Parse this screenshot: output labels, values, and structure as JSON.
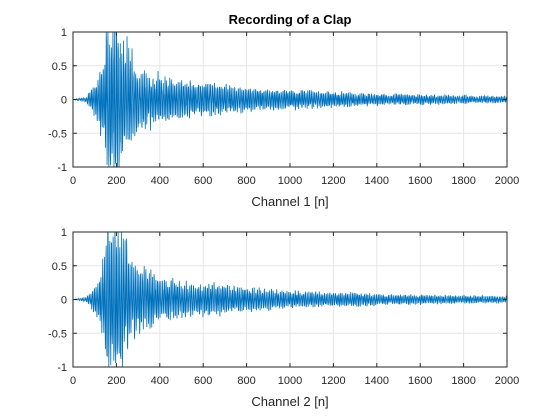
{
  "chart_data": [
    {
      "type": "line",
      "title": "Recording of a Clap",
      "xlabel": "Channel 1 [n]",
      "ylabel": "",
      "xlim": [
        0,
        2000
      ],
      "ylim": [
        -1,
        1
      ],
      "xticks": [
        0,
        200,
        400,
        600,
        800,
        1000,
        1200,
        1400,
        1600,
        1800,
        2000
      ],
      "yticks": [
        -1,
        -0.5,
        0,
        0.5,
        1
      ],
      "grid": true,
      "line_color": "#0072BD",
      "envelope": {
        "x": [
          0,
          60,
          90,
          120,
          140,
          160,
          180,
          200,
          220,
          260,
          300,
          400,
          500,
          600,
          700,
          800,
          1000,
          1200,
          1400,
          1600,
          1800,
          2000
        ],
        "amplitude": [
          0.0,
          0.03,
          0.15,
          0.35,
          0.6,
          1.0,
          1.0,
          1.0,
          0.9,
          0.6,
          0.4,
          0.3,
          0.25,
          0.22,
          0.18,
          0.15,
          0.12,
          0.1,
          0.07,
          0.06,
          0.05,
          0.04
        ]
      }
    },
    {
      "type": "line",
      "title": "",
      "xlabel": "Channel 2 [n]",
      "ylabel": "",
      "xlim": [
        0,
        2000
      ],
      "ylim": [
        -1,
        1
      ],
      "xticks": [
        0,
        200,
        400,
        600,
        800,
        1000,
        1200,
        1400,
        1600,
        1800,
        2000
      ],
      "yticks": [
        -1,
        -0.5,
        0,
        0.5,
        1
      ],
      "grid": true,
      "line_color": "#0072BD",
      "envelope": {
        "x": [
          0,
          60,
          90,
          120,
          140,
          160,
          180,
          200,
          220,
          260,
          300,
          400,
          500,
          600,
          700,
          800,
          1000,
          1200,
          1400,
          1600,
          1800,
          2000
        ],
        "amplitude": [
          0.0,
          0.03,
          0.12,
          0.3,
          0.55,
          1.0,
          1.0,
          1.0,
          0.85,
          0.55,
          0.4,
          0.28,
          0.22,
          0.2,
          0.17,
          0.14,
          0.11,
          0.09,
          0.07,
          0.06,
          0.05,
          0.04
        ]
      }
    }
  ]
}
